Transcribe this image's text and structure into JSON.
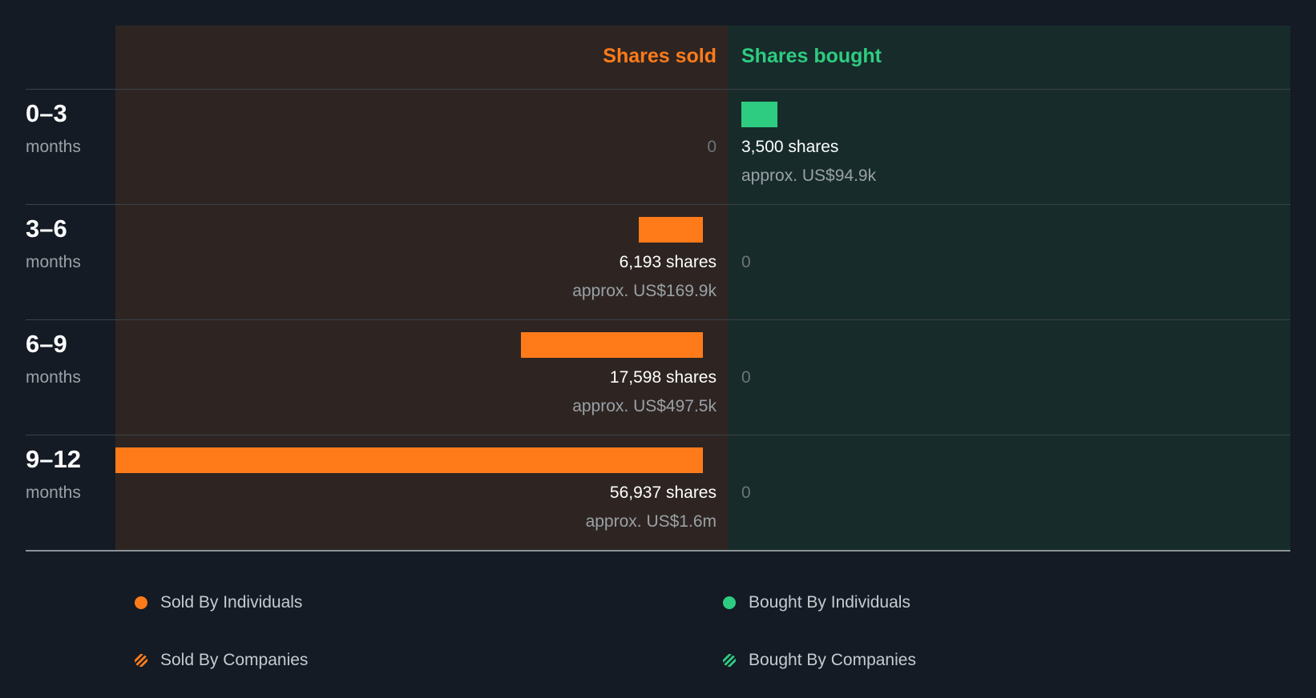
{
  "colors": {
    "sold": "#ff7b1a",
    "bought": "#2ecc80",
    "background": "#141b25"
  },
  "chart_data": {
    "type": "bar",
    "orientation": "horizontal-diverging",
    "headers": {
      "sold": "Shares sold",
      "bought": "Shares bought"
    },
    "rows": [
      {
        "period": "0–3",
        "unit": "months",
        "sold": {
          "value": 0,
          "label": "0",
          "approx": ""
        },
        "bought": {
          "value": 3500,
          "label": "3,500 shares",
          "approx": "approx. US$94.9k"
        }
      },
      {
        "period": "3–6",
        "unit": "months",
        "sold": {
          "value": 6193,
          "label": "6,193 shares",
          "approx": "approx. US$169.9k"
        },
        "bought": {
          "value": 0,
          "label": "0",
          "approx": ""
        }
      },
      {
        "period": "6–9",
        "unit": "months",
        "sold": {
          "value": 17598,
          "label": "17,598 shares",
          "approx": "approx. US$497.5k"
        },
        "bought": {
          "value": 0,
          "label": "0",
          "approx": ""
        }
      },
      {
        "period": "9–12",
        "unit": "months",
        "sold": {
          "value": 56937,
          "label": "56,937 shares",
          "approx": "approx. US$1.6m"
        },
        "bought": {
          "value": 0,
          "label": "0",
          "approx": ""
        }
      }
    ],
    "legend": [
      {
        "label": "Sold By Individuals",
        "icon": "orange-solid-dot"
      },
      {
        "label": "Bought By Individuals",
        "icon": "green-solid-dot"
      },
      {
        "label": "Sold By Companies",
        "icon": "orange-hatched-dot"
      },
      {
        "label": "Bought By Companies",
        "icon": "green-hatched-dot"
      }
    ]
  }
}
